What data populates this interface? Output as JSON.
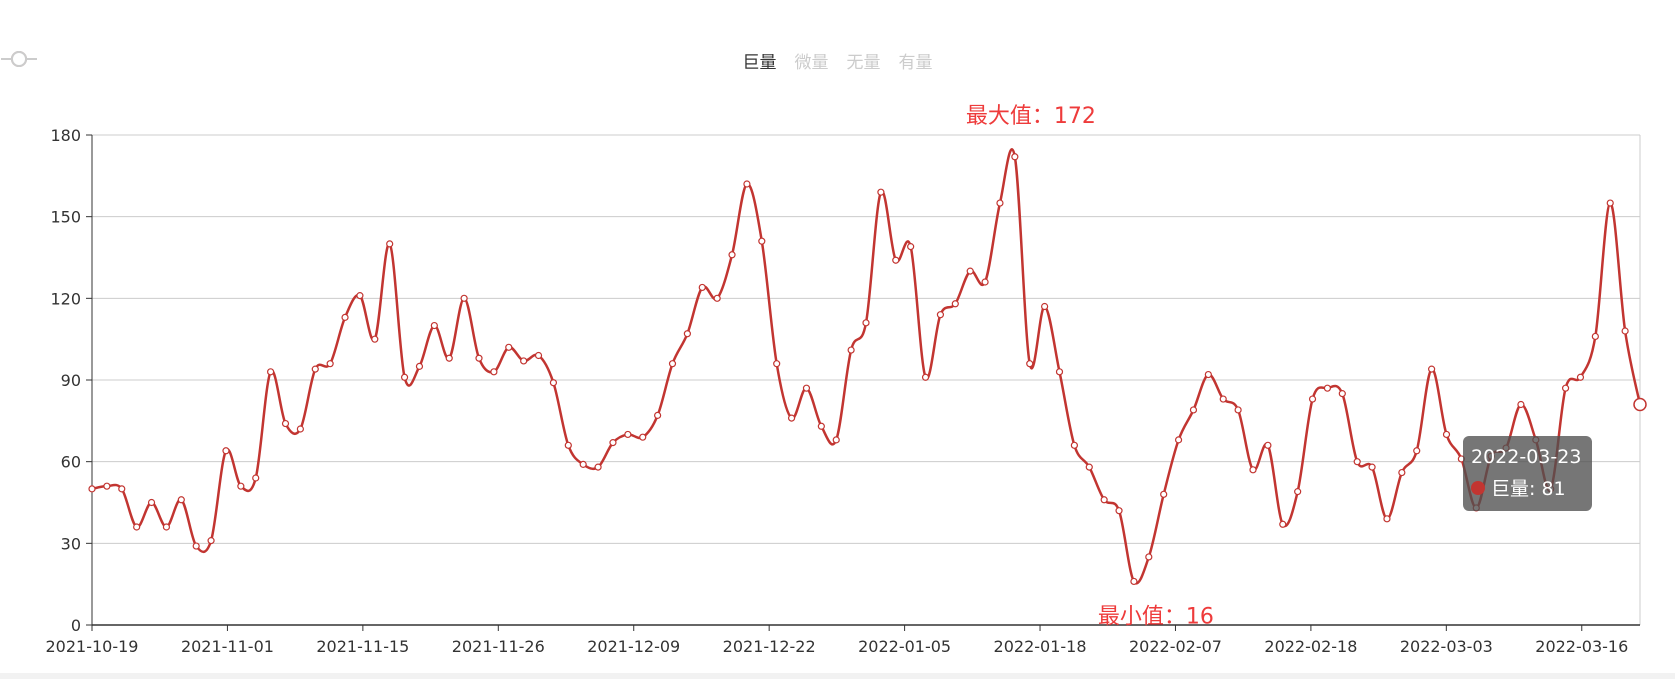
{
  "legend": [
    {
      "name": "巨量",
      "active": true
    },
    {
      "name": "微量",
      "active": false
    },
    {
      "name": "无量",
      "active": false
    },
    {
      "name": "有量",
      "active": false
    }
  ],
  "colors": {
    "series": "#c23531",
    "inactive": "#cccccc",
    "markText": "#ee3b3b",
    "grid": "#cccccc",
    "axis": "#333333"
  },
  "markers": {
    "max_label": "最大值：172",
    "min_label": "最小值：16"
  },
  "tooltip": {
    "date": "2022-03-23",
    "series": "巨量",
    "value": "81",
    "text": "巨量: 81"
  },
  "chart_data": {
    "type": "line",
    "title": "",
    "xlabel": "",
    "ylabel": "",
    "ylim": [
      0,
      180
    ],
    "yticks": [
      0,
      30,
      60,
      90,
      120,
      150,
      180
    ],
    "xtick_labels": [
      "2021-10-19",
      "2021-11-01",
      "2021-11-15",
      "2021-11-26",
      "2021-12-09",
      "2021-12-22",
      "2022-01-05",
      "2022-01-18",
      "2022-02-07",
      "2022-02-18",
      "2022-03-03",
      "2022-03-16"
    ],
    "grid": true,
    "smooth": true,
    "legend_position": "top",
    "series": [
      {
        "name": "巨量",
        "values": [
          50,
          51,
          50,
          36,
          45,
          36,
          46,
          29,
          31,
          64,
          51,
          54,
          93,
          74,
          72,
          94,
          96,
          113,
          121,
          105,
          140,
          91,
          95,
          110,
          98,
          120,
          98,
          93,
          102,
          97,
          99,
          89,
          66,
          59,
          58,
          67,
          70,
          69,
          77,
          96,
          107,
          124,
          120,
          136,
          162,
          141,
          96,
          76,
          87,
          73,
          68,
          101,
          111,
          159,
          134,
          139,
          91,
          114,
          118,
          130,
          126,
          155,
          172,
          96,
          117,
          93,
          66,
          58,
          46,
          42,
          16,
          25,
          48,
          68,
          79,
          92,
          83,
          79,
          57,
          66,
          37,
          49,
          83,
          87,
          85,
          60,
          58,
          39,
          56,
          64,
          94,
          70,
          61,
          43,
          62,
          65,
          81,
          68,
          50,
          87,
          91,
          106,
          155,
          108,
          81
        ]
      }
    ]
  }
}
